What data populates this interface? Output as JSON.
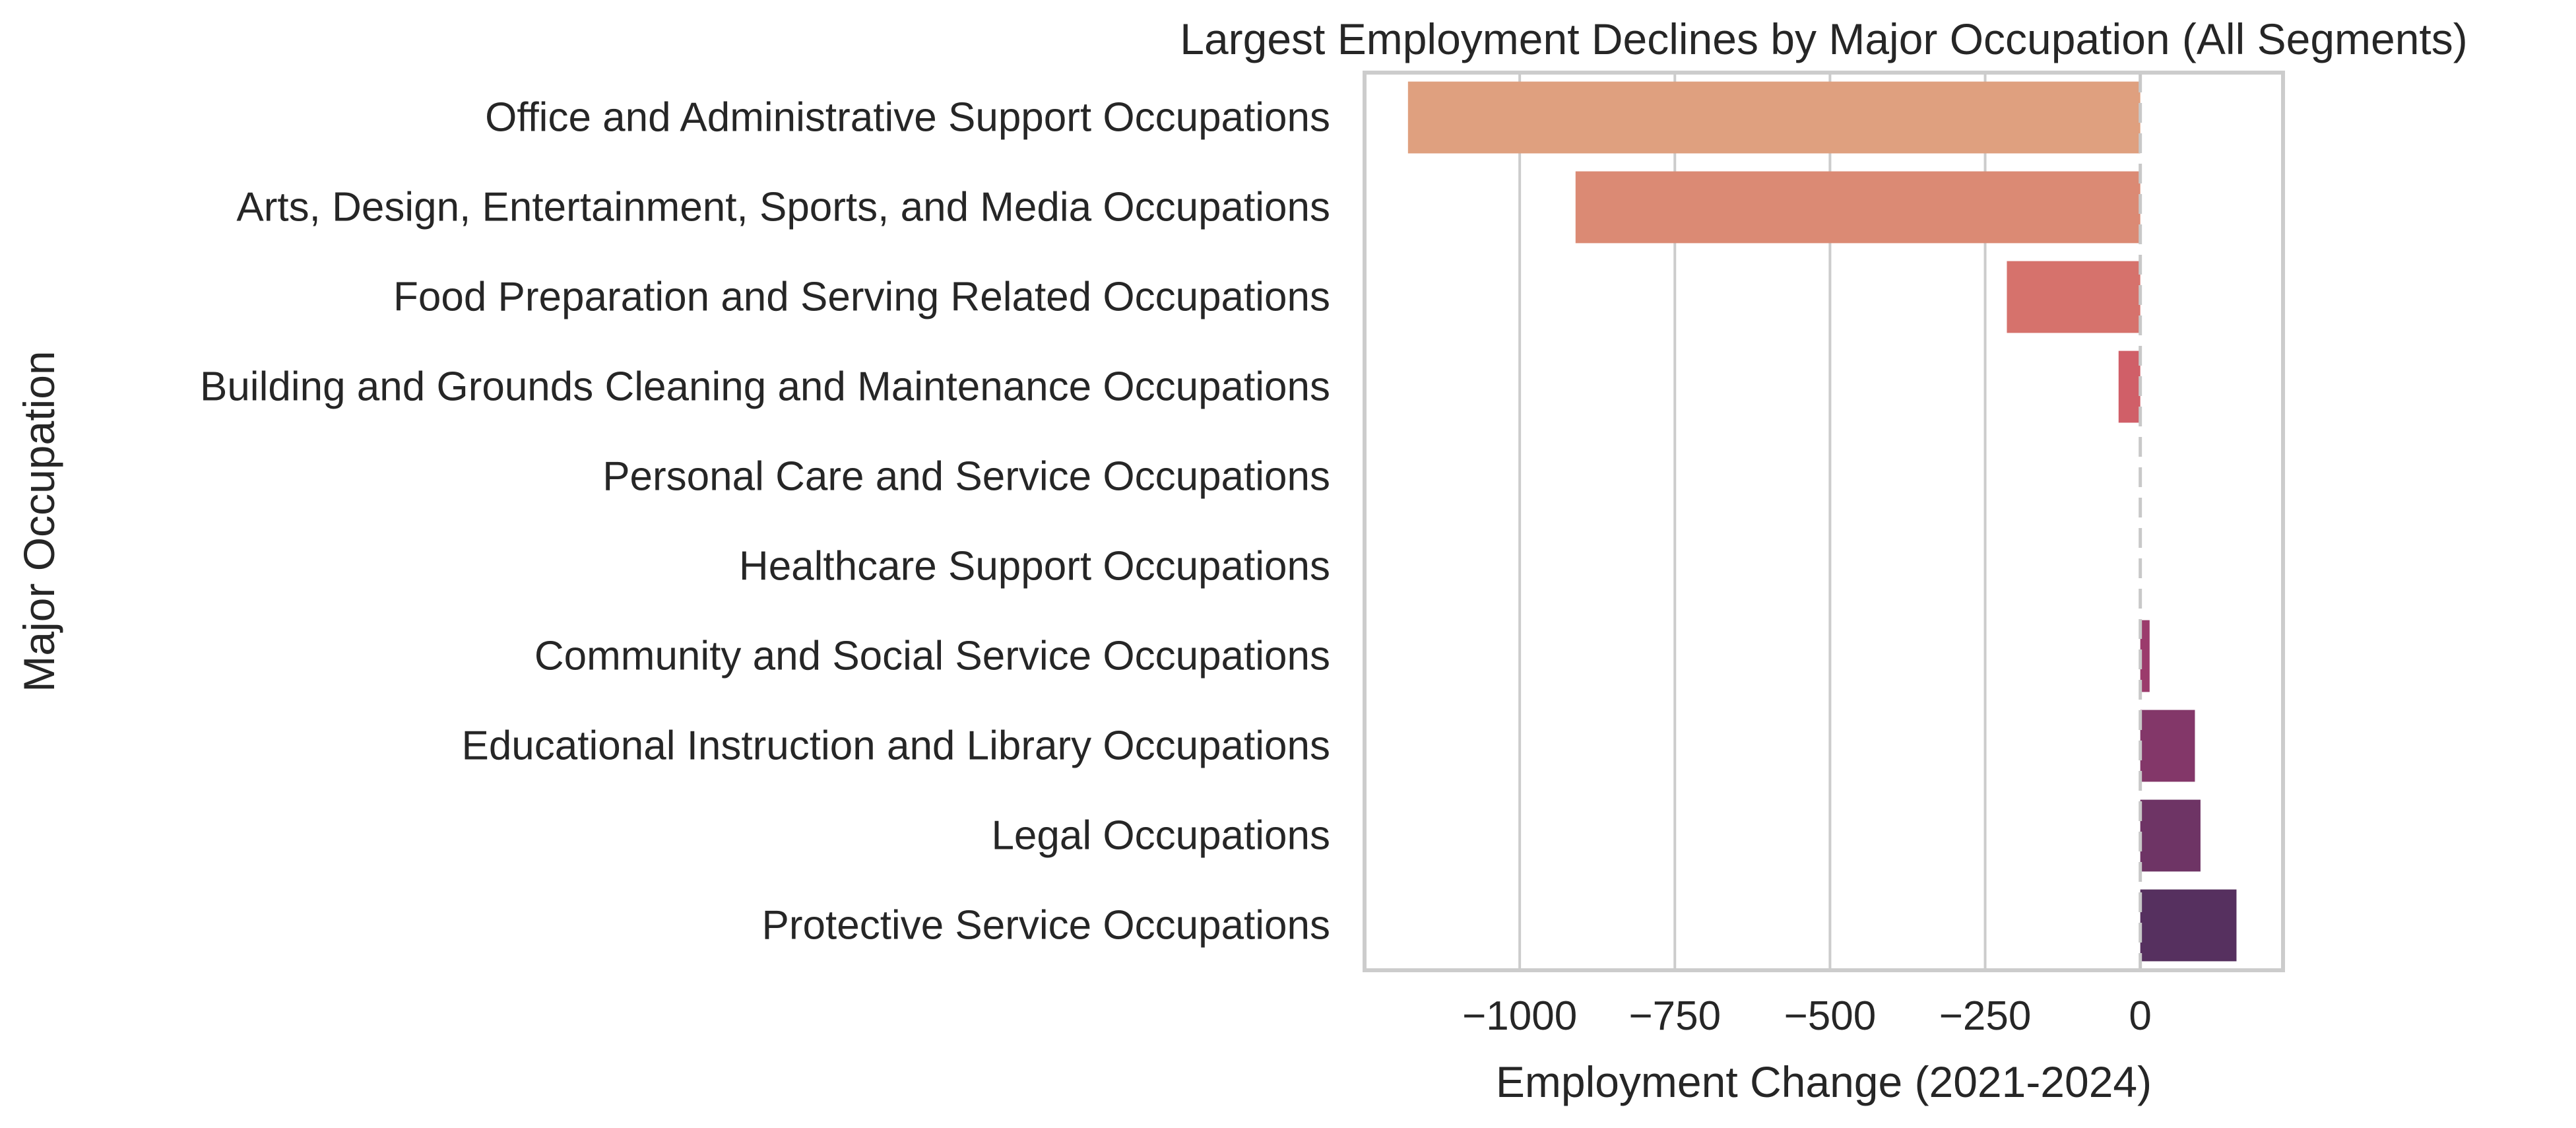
{
  "chart_data": {
    "type": "bar",
    "orientation": "horizontal",
    "title": "Largest Employment Declines by Major Occupation (All Segments)",
    "xlabel": "Employment Change (2021-2024)",
    "ylabel": "Major Occupation",
    "categories": [
      "Office and Administrative Support Occupations",
      "Arts, Design, Entertainment, Sports, and Media Occupations",
      "Food Preparation and Serving Related Occupations",
      "Building and Grounds Cleaning and Maintenance Occupations",
      "Personal Care and Service Occupations",
      "Healthcare Support Occupations",
      "Community and Social Service Occupations",
      "Educational Instruction and Library Occupations",
      "Legal Occupations",
      "Protective Service Occupations"
    ],
    "values": [
      -1180,
      -910,
      -215,
      -35,
      0,
      0,
      15,
      88,
      97,
      155
    ],
    "colors": [
      "#dfa07f",
      "#db8a74",
      "#d6726c",
      "#d05f68",
      "#c44f68",
      "#b2436b",
      "#9b3b6c",
      "#833769",
      "#6e3465",
      "#56305f"
    ],
    "xlim": [
      -1250,
      230
    ],
    "xticks": [
      -1000,
      -750,
      -500,
      -250,
      0
    ],
    "xtick_labels": [
      "−1000",
      "−750",
      "−500",
      "−250",
      "0"
    ],
    "grid": true,
    "zero_line": "dashed",
    "legend": "none"
  }
}
